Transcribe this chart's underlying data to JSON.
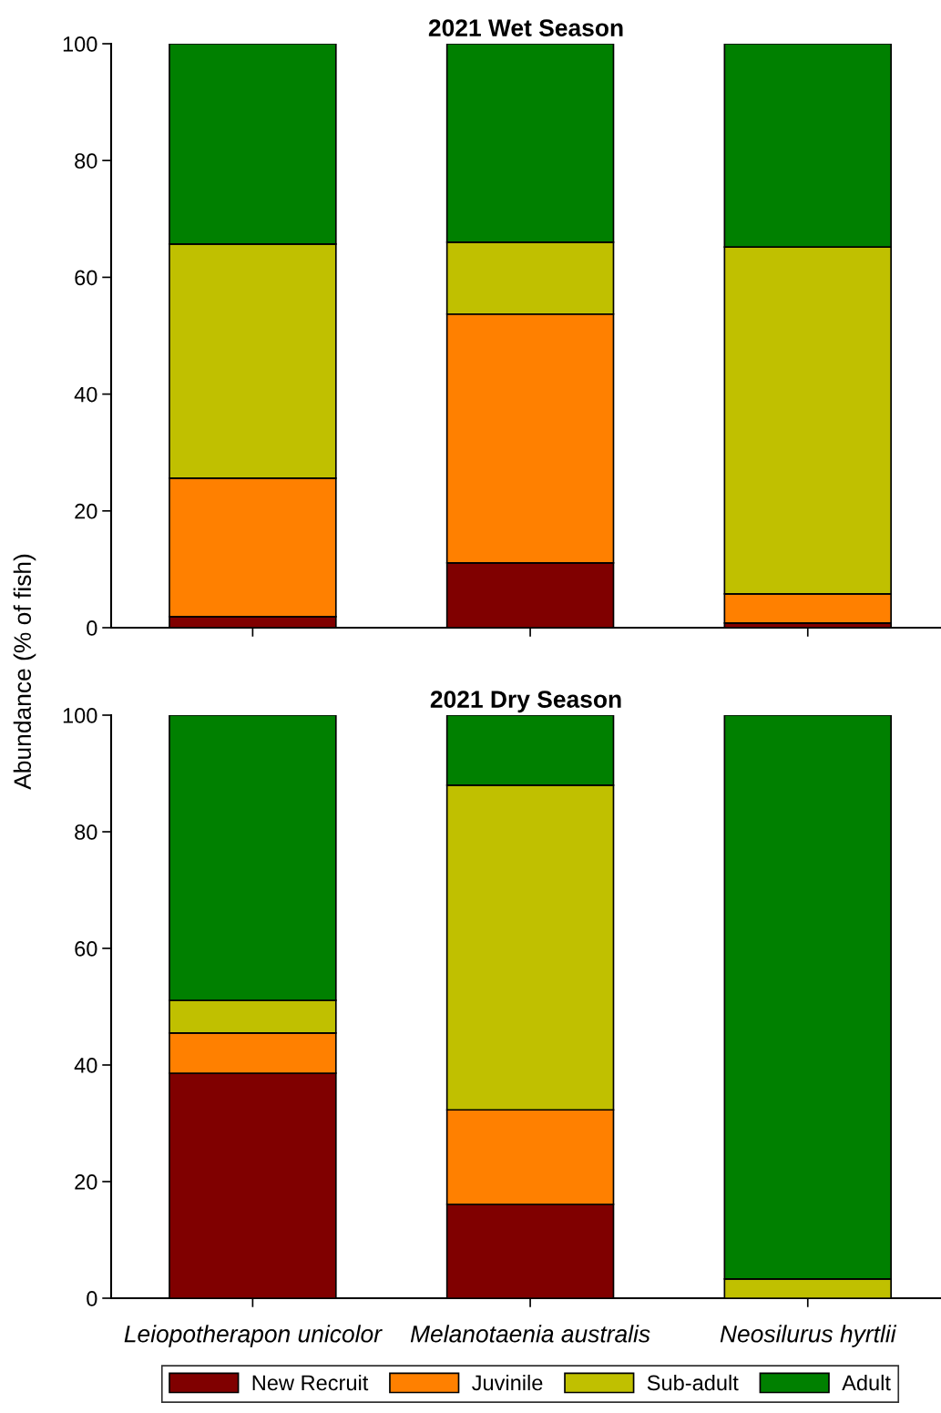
{
  "chart_data": [
    {
      "type": "bar",
      "title": "2021 Wet Season",
      "ylabel": "Abundance (% of fish)",
      "stacked": true,
      "categories": [
        null,
        null,
        null
      ],
      "ylim": [
        0,
        100
      ],
      "yticks": [
        0,
        20,
        40,
        60,
        80,
        100
      ],
      "tick_labels": "y",
      "grid": false,
      "legend": "bottom",
      "series": [
        {
          "name": "New Recruit",
          "color": "#800000",
          "values": [
            1.9,
            11.1,
            0.8
          ]
        },
        {
          "name": "Juvinile",
          "color": "#ff8000",
          "values": [
            23.7,
            42.6,
            5.0
          ]
        },
        {
          "name": "Sub-adult",
          "color": "#c0c000",
          "values": [
            40.1,
            12.3,
            59.4
          ]
        },
        {
          "name": "Adult",
          "color": "#008000",
          "values": [
            34.3,
            34.0,
            34.8
          ]
        }
      ]
    },
    {
      "type": "bar",
      "title": "2021 Dry Season",
      "stacked": true,
      "categories": [
        "Leiopotherapon unicolor",
        "Melanotaenia australis",
        "Neosilurus hyrtlii"
      ],
      "ylim": [
        0,
        100
      ],
      "yticks": [
        0,
        20,
        40,
        60,
        80,
        100
      ],
      "grid": false,
      "series": [
        {
          "color": "#800000",
          "values": [
            38.6,
            16.1,
            0
          ]
        },
        {
          "color": "#ff8000",
          "values": [
            6.9,
            16.2,
            0
          ]
        },
        {
          "color": "#c0c000",
          "values": [
            5.6,
            55.7,
            3.3
          ]
        },
        {
          "color": "#008000",
          "values": [
            48.9,
            12.0,
            96.7
          ]
        }
      ]
    }
  ]
}
